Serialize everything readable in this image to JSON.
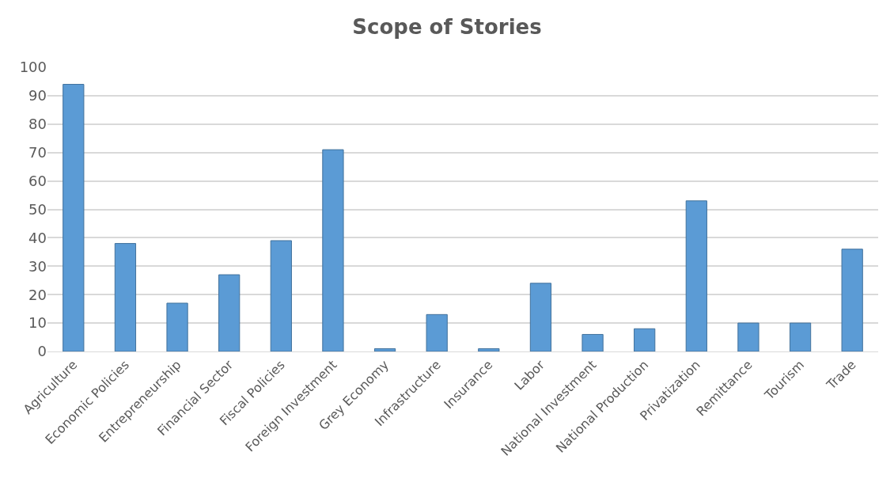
{
  "chart_data": {
    "type": "bar",
    "title": "Scope of Stories",
    "categories": [
      "Agriculture",
      "Economic Policies",
      "Entrepreneurship",
      "Financial Sector",
      "Fiscal Policies",
      "Foreign Investment",
      "Grey Economy",
      "Infrastructure",
      "Insurance",
      "Labor",
      "National Investment",
      "National Production",
      "Privatization",
      "Remittance",
      "Tourism",
      "Trade"
    ],
    "values": [
      94,
      38,
      17,
      27,
      39,
      71,
      1,
      13,
      1,
      24,
      6,
      8,
      53,
      10,
      10,
      36
    ],
    "color": "#5b9bd5",
    "ylim": [
      0,
      100
    ],
    "yticks": [
      0,
      10,
      20,
      30,
      40,
      50,
      60,
      70,
      80,
      90,
      100
    ],
    "grid": "y"
  }
}
